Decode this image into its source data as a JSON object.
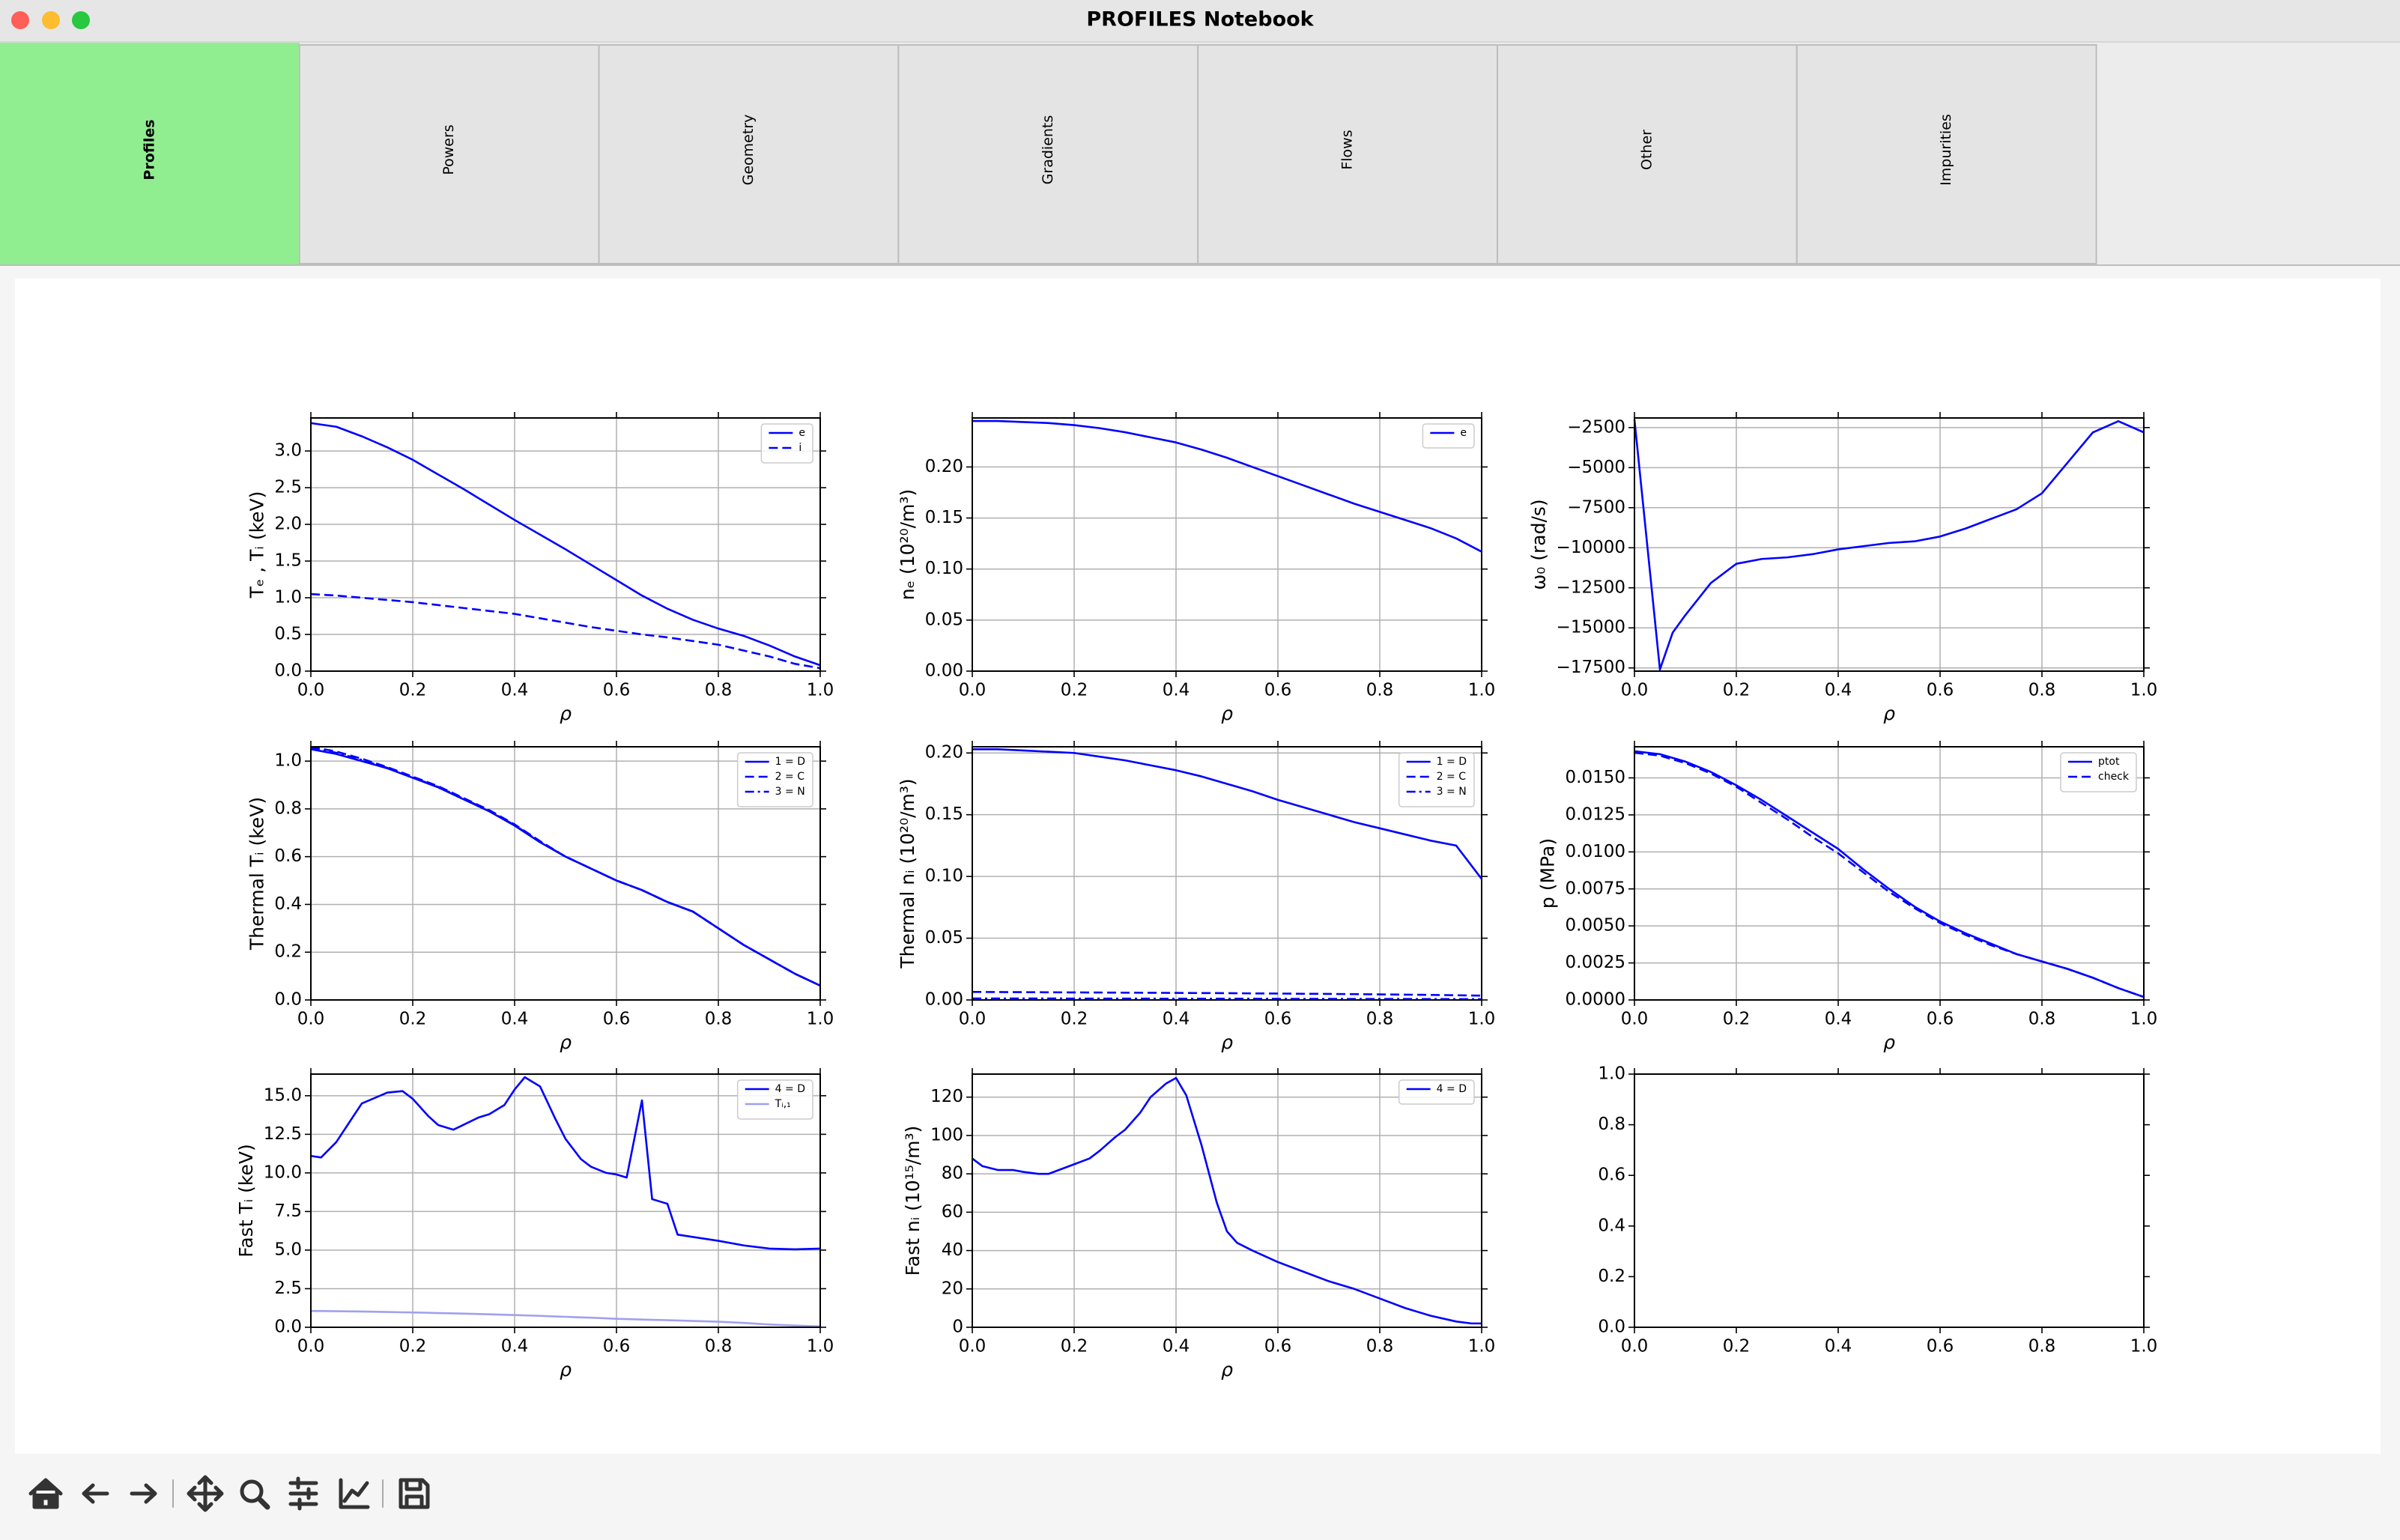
{
  "window": {
    "title": "PROFILES Notebook"
  },
  "tabs": [
    "Profiles",
    "Powers",
    "Geometry",
    "Gradients",
    "Flows",
    "Other",
    "Impurities"
  ],
  "chart_data": [
    {
      "type": "line",
      "xlabel": "ρ",
      "ylabel": "Tₑ , Tᵢ (keV)",
      "x": [
        0,
        0.05,
        0.1,
        0.15,
        0.2,
        0.25,
        0.3,
        0.35,
        0.4,
        0.45,
        0.5,
        0.55,
        0.6,
        0.65,
        0.7,
        0.75,
        0.8,
        0.85,
        0.9,
        0.95,
        1.0
      ],
      "series": [
        {
          "name": "e",
          "color": "#0000ff",
          "linestyle": "solid",
          "values": [
            3.38,
            3.33,
            3.2,
            3.05,
            2.88,
            2.68,
            2.48,
            2.27,
            2.06,
            1.86,
            1.66,
            1.45,
            1.24,
            1.03,
            0.85,
            0.7,
            0.58,
            0.48,
            0.35,
            0.2,
            0.08
          ]
        },
        {
          "name": "i",
          "color": "#0000ff",
          "linestyle": "dashed",
          "values": [
            1.05,
            1.03,
            1.0,
            0.97,
            0.94,
            0.9,
            0.86,
            0.82,
            0.78,
            0.72,
            0.66,
            0.6,
            0.55,
            0.5,
            0.46,
            0.41,
            0.36,
            0.28,
            0.2,
            0.1,
            0.04
          ]
        }
      ],
      "xlim": [
        0,
        1
      ],
      "ylim": [
        0,
        3.45
      ],
      "xticks": [
        {
          "value": 0,
          "label": "0.0"
        },
        0.2,
        0.4,
        0.6,
        0.8,
        {
          "value": 1,
          "label": "1.0"
        }
      ],
      "yticks": [
        {
          "value": 0,
          "label": "0.0"
        },
        0.5,
        {
          "value": 1,
          "label": "1.0"
        },
        1.5,
        {
          "value": 2,
          "label": "2.0"
        },
        2.5,
        {
          "value": 3,
          "label": "3.0"
        }
      ],
      "grid": true,
      "legend": "upper right"
    },
    {
      "type": "line",
      "xlabel": "ρ",
      "ylabel": "nₑ (10²⁰/m³)",
      "x": [
        0,
        0.05,
        0.1,
        0.15,
        0.2,
        0.25,
        0.3,
        0.35,
        0.4,
        0.45,
        0.5,
        0.55,
        0.6,
        0.65,
        0.7,
        0.75,
        0.8,
        0.85,
        0.9,
        0.95,
        1.0
      ],
      "series": [
        {
          "name": "e",
          "color": "#0000ff",
          "linestyle": "solid",
          "values": [
            0.245,
            0.245,
            0.244,
            0.243,
            0.241,
            0.238,
            0.234,
            0.229,
            0.224,
            0.217,
            0.209,
            0.2,
            0.191,
            0.182,
            0.173,
            0.164,
            0.156,
            0.148,
            0.14,
            0.13,
            0.117
          ]
        }
      ],
      "xlim": [
        0,
        1
      ],
      "ylim": [
        0,
        0.248
      ],
      "xticks": [
        {
          "value": 0,
          "label": "0.0"
        },
        0.2,
        0.4,
        0.6,
        0.8,
        {
          "value": 1,
          "label": "1.0"
        }
      ],
      "yticks": [
        {
          "value": 0,
          "label": "0.00"
        },
        0.05,
        {
          "value": 0.1,
          "label": "0.10"
        },
        0.15,
        {
          "value": 0.2,
          "label": "0.20"
        }
      ],
      "grid": true,
      "legend": "upper right"
    },
    {
      "type": "line",
      "xlabel": "ρ",
      "ylabel": "ω₀ (rad/s)",
      "x": [
        0,
        0.05,
        0.075,
        0.1,
        0.15,
        0.2,
        0.25,
        0.3,
        0.35,
        0.4,
        0.45,
        0.5,
        0.55,
        0.6,
        0.65,
        0.7,
        0.75,
        0.8,
        0.85,
        0.9,
        0.95,
        1.0
      ],
      "series": [
        {
          "name": "ω₀",
          "color": "#0000ff",
          "linestyle": "solid",
          "values": [
            -2000,
            -17600,
            -15300,
            -14200,
            -12200,
            -11000,
            -10700,
            -10600,
            -10400,
            -10100,
            -9900,
            -9700,
            -9600,
            -9300,
            -8800,
            -8200,
            -7600,
            -6600,
            -4700,
            -2800,
            -2100,
            -2800
          ]
        }
      ],
      "xlim": [
        0,
        1
      ],
      "ylim": [
        -17700,
        -1900
      ],
      "xticks": [
        {
          "value": 0,
          "label": "0.0"
        },
        0.2,
        0.4,
        0.6,
        0.8,
        {
          "value": 1,
          "label": "1.0"
        }
      ],
      "yticks": [
        {
          "value": -17500,
          "label": "−17500"
        },
        {
          "value": -15000,
          "label": "−15000"
        },
        {
          "value": -12500,
          "label": "−12500"
        },
        {
          "value": -10000,
          "label": "−10000"
        },
        {
          "value": -7500,
          "label": "−7500"
        },
        {
          "value": -5000,
          "label": "−5000"
        },
        {
          "value": -2500,
          "label": "−2500"
        }
      ],
      "grid": true
    },
    {
      "type": "line",
      "xlabel": "ρ",
      "ylabel": "Thermal Tᵢ (keV)",
      "x": [
        0,
        0.05,
        0.1,
        0.15,
        0.2,
        0.25,
        0.3,
        0.35,
        0.4,
        0.45,
        0.5,
        0.55,
        0.6,
        0.65,
        0.7,
        0.75,
        0.8,
        0.85,
        0.9,
        0.95,
        1.0
      ],
      "series": [
        {
          "name": "1 = D",
          "color": "#0000ff",
          "linestyle": "solid",
          "values": [
            1.05,
            1.03,
            1.0,
            0.97,
            0.93,
            0.89,
            0.84,
            0.79,
            0.73,
            0.66,
            0.6,
            0.55,
            0.5,
            0.46,
            0.41,
            0.37,
            0.3,
            0.23,
            0.17,
            0.11,
            0.06
          ]
        },
        {
          "name": "2 = C",
          "color": "#0000ff",
          "linestyle": "dashed",
          "values": [
            1.06,
            1.04,
            1.01,
            0.975,
            0.935,
            0.895,
            0.845,
            0.795,
            0.735,
            0.665,
            0.6,
            0.55,
            0.5,
            0.46,
            0.41,
            0.37,
            0.3,
            0.23,
            0.17,
            0.11,
            0.06
          ]
        },
        {
          "name": "3 = N",
          "color": "#0000ff",
          "linestyle": "dashdot",
          "values": [
            1.055,
            1.035,
            1.005,
            0.972,
            0.932,
            0.892,
            0.842,
            0.792,
            0.732,
            0.662,
            0.6,
            0.55,
            0.5,
            0.46,
            0.41,
            0.37,
            0.3,
            0.23,
            0.17,
            0.11,
            0.06
          ]
        }
      ],
      "xlim": [
        0,
        1
      ],
      "ylim": [
        0,
        1.06
      ],
      "xticks": [
        {
          "value": 0,
          "label": "0.0"
        },
        0.2,
        0.4,
        0.6,
        0.8,
        {
          "value": 1,
          "label": "1.0"
        }
      ],
      "yticks": [
        {
          "value": 0,
          "label": "0.0"
        },
        0.2,
        0.4,
        0.6,
        0.8,
        {
          "value": 1,
          "label": "1.0"
        }
      ],
      "grid": true,
      "legend": "upper right"
    },
    {
      "type": "line",
      "xlabel": "ρ",
      "ylabel": "Thermal nᵢ (10²⁰/m³)",
      "x": [
        0,
        0.05,
        0.1,
        0.15,
        0.2,
        0.25,
        0.3,
        0.35,
        0.4,
        0.45,
        0.5,
        0.55,
        0.6,
        0.65,
        0.7,
        0.75,
        0.8,
        0.85,
        0.9,
        0.95,
        1.0
      ],
      "series": [
        {
          "name": "1 = D",
          "color": "#0000ff",
          "linestyle": "solid",
          "values": [
            0.203,
            0.203,
            0.202,
            0.201,
            0.2,
            0.197,
            0.194,
            0.19,
            0.186,
            0.181,
            0.175,
            0.169,
            0.162,
            0.156,
            0.15,
            0.144,
            0.139,
            0.134,
            0.129,
            0.125,
            0.098
          ]
        },
        {
          "name": "2 = C",
          "color": "#0000ff",
          "linestyle": "dashed",
          "values": [
            0.0065,
            0.0064,
            0.0063,
            0.0062,
            0.0061,
            0.006,
            0.0059,
            0.0058,
            0.0057,
            0.0056,
            0.0055,
            0.0053,
            0.0052,
            0.005,
            0.0049,
            0.0047,
            0.0045,
            0.0043,
            0.0041,
            0.0038,
            0.0035
          ]
        },
        {
          "name": "3 = N",
          "color": "#0000ff",
          "linestyle": "dashdot",
          "values": [
            0.0012,
            0.0012,
            0.0012,
            0.0012,
            0.0011,
            0.0011,
            0.0011,
            0.0011,
            0.001,
            0.001,
            0.001,
            0.001,
            0.0009,
            0.0009,
            0.0009,
            0.0008,
            0.0008,
            0.0008,
            0.0007,
            0.0007,
            0.0006
          ]
        }
      ],
      "xlim": [
        0,
        1
      ],
      "ylim": [
        0,
        0.205
      ],
      "xticks": [
        {
          "value": 0,
          "label": "0.0"
        },
        0.2,
        0.4,
        0.6,
        0.8,
        {
          "value": 1,
          "label": "1.0"
        }
      ],
      "yticks": [
        {
          "value": 0,
          "label": "0.00"
        },
        0.05,
        {
          "value": 0.1,
          "label": "0.10"
        },
        0.15,
        {
          "value": 0.2,
          "label": "0.20"
        }
      ],
      "grid": true,
      "legend": "upper right"
    },
    {
      "type": "line",
      "xlabel": "ρ",
      "ylabel": "p (MPa)",
      "x": [
        0,
        0.05,
        0.1,
        0.15,
        0.2,
        0.25,
        0.3,
        0.35,
        0.4,
        0.45,
        0.5,
        0.55,
        0.6,
        0.65,
        0.7,
        0.75,
        0.8,
        0.85,
        0.9,
        0.95,
        1.0
      ],
      "series": [
        {
          "name": "ptot",
          "color": "#0000ff",
          "linestyle": "solid",
          "values": [
            0.0168,
            0.0166,
            0.0161,
            0.0154,
            0.0145,
            0.0135,
            0.0124,
            0.0113,
            0.0102,
            0.0088,
            0.0075,
            0.0063,
            0.0053,
            0.0045,
            0.0038,
            0.0031,
            0.0026,
            0.0021,
            0.0015,
            0.0008,
            0.0002
          ]
        },
        {
          "name": "check",
          "color": "#0000ff",
          "linestyle": "dashed",
          "values": [
            0.0167,
            0.0165,
            0.016,
            0.0153,
            0.0144,
            0.0133,
            0.0122,
            0.011,
            0.0099,
            0.0086,
            0.0073,
            0.0062,
            0.0052,
            0.0044,
            0.0037,
            0.0031,
            0.0026,
            0.0021,
            0.0015,
            0.0008,
            0.0002
          ]
        }
      ],
      "xlim": [
        0,
        1
      ],
      "ylim": [
        0,
        0.0171
      ],
      "xticks": [
        {
          "value": 0,
          "label": "0.0"
        },
        0.2,
        0.4,
        0.6,
        0.8,
        {
          "value": 1,
          "label": "1.0"
        }
      ],
      "yticks": [
        {
          "value": 0,
          "label": "0.0000"
        },
        0.0025,
        {
          "value": 0.005,
          "label": "0.0050"
        },
        0.0075,
        {
          "value": 0.01,
          "label": "0.0100"
        },
        0.0125,
        {
          "value": 0.015,
          "label": "0.0150"
        }
      ],
      "grid": true,
      "legend": "upper right"
    },
    {
      "type": "line",
      "xlabel": "ρ",
      "ylabel": "Fast Tᵢ (keV)",
      "x": [
        0,
        0.02,
        0.05,
        0.08,
        0.1,
        0.15,
        0.18,
        0.2,
        0.23,
        0.25,
        0.28,
        0.33,
        0.35,
        0.38,
        0.4,
        0.42,
        0.45,
        0.48,
        0.5,
        0.53,
        0.55,
        0.58,
        0.6,
        0.62,
        0.65,
        0.67,
        0.7,
        0.72,
        0.8,
        0.85,
        0.9,
        0.95,
        1.0
      ],
      "series": [
        {
          "name": "4 = D",
          "color": "#0000ff",
          "linestyle": "solid",
          "values": [
            11.1,
            11.0,
            12.0,
            13.5,
            14.5,
            15.2,
            15.3,
            14.8,
            13.7,
            13.1,
            12.8,
            13.6,
            13.8,
            14.4,
            15.4,
            16.2,
            15.6,
            13.5,
            12.2,
            10.9,
            10.4,
            10.0,
            9.9,
            9.7,
            14.7,
            8.3,
            8.0,
            6.0,
            5.6,
            5.3,
            5.1,
            5.05,
            5.1
          ]
        },
        {
          "name": "Tᵢ,₁",
          "color": "#a0a0f0",
          "linestyle": "solid",
          "values": [
            1.05,
            1.05,
            1.04,
            1.03,
            1.02,
            0.99,
            0.97,
            0.96,
            0.94,
            0.92,
            0.9,
            0.86,
            0.84,
            0.81,
            0.79,
            0.77,
            0.74,
            0.7,
            0.68,
            0.64,
            0.62,
            0.58,
            0.55,
            0.53,
            0.5,
            0.48,
            0.46,
            0.44,
            0.36,
            0.28,
            0.18,
            0.11,
            0.06
          ]
        }
      ],
      "xlim": [
        0,
        1
      ],
      "ylim": [
        0,
        16.4
      ],
      "xticks": [
        {
          "value": 0,
          "label": "0.0"
        },
        0.2,
        0.4,
        0.6,
        0.8,
        {
          "value": 1,
          "label": "1.0"
        }
      ],
      "yticks": [
        {
          "value": 0,
          "label": "0.0"
        },
        2.5,
        {
          "value": 5,
          "label": "5.0"
        },
        7.5,
        {
          "value": 10,
          "label": "10.0"
        },
        12.5,
        {
          "value": 15,
          "label": "15.0"
        }
      ],
      "grid": true,
      "legend": "upper right"
    },
    {
      "type": "line",
      "xlabel": "ρ",
      "ylabel": "Fast nᵢ (10¹⁵/m³)",
      "x": [
        0,
        0.02,
        0.05,
        0.08,
        0.1,
        0.13,
        0.15,
        0.2,
        0.23,
        0.25,
        0.28,
        0.3,
        0.33,
        0.35,
        0.38,
        0.4,
        0.42,
        0.45,
        0.48,
        0.5,
        0.52,
        0.55,
        0.6,
        0.65,
        0.7,
        0.75,
        0.8,
        0.85,
        0.9,
        0.95,
        0.98,
        1.0
      ],
      "series": [
        {
          "name": "4 = D",
          "color": "#0000ff",
          "linestyle": "solid",
          "values": [
            88,
            84,
            82,
            82,
            81,
            80,
            80,
            85,
            88,
            92,
            99,
            103,
            112,
            120,
            127,
            130,
            121,
            95,
            65,
            50,
            44,
            40,
            34,
            29,
            24,
            20,
            15,
            10,
            6,
            3,
            2,
            2
          ]
        }
      ],
      "xlim": [
        0,
        1
      ],
      "ylim": [
        0,
        132
      ],
      "xticks": [
        {
          "value": 0,
          "label": "0.0"
        },
        0.2,
        0.4,
        0.6,
        0.8,
        {
          "value": 1,
          "label": "1.0"
        }
      ],
      "yticks": [
        0,
        20,
        40,
        60,
        80,
        100,
        120
      ],
      "grid": true,
      "legend": "upper right"
    },
    {
      "type": "line",
      "xlim": [
        0,
        1
      ],
      "ylim": [
        0,
        1
      ],
      "xticks": [
        {
          "value": 0,
          "label": "0.0"
        },
        0.2,
        0.4,
        0.6,
        0.8,
        {
          "value": 1,
          "label": "1.0"
        }
      ],
      "yticks": [
        {
          "value": 0,
          "label": "0.0"
        },
        0.2,
        0.4,
        0.6,
        0.8,
        {
          "value": 1,
          "label": "1.0"
        }
      ],
      "grid": false
    }
  ]
}
